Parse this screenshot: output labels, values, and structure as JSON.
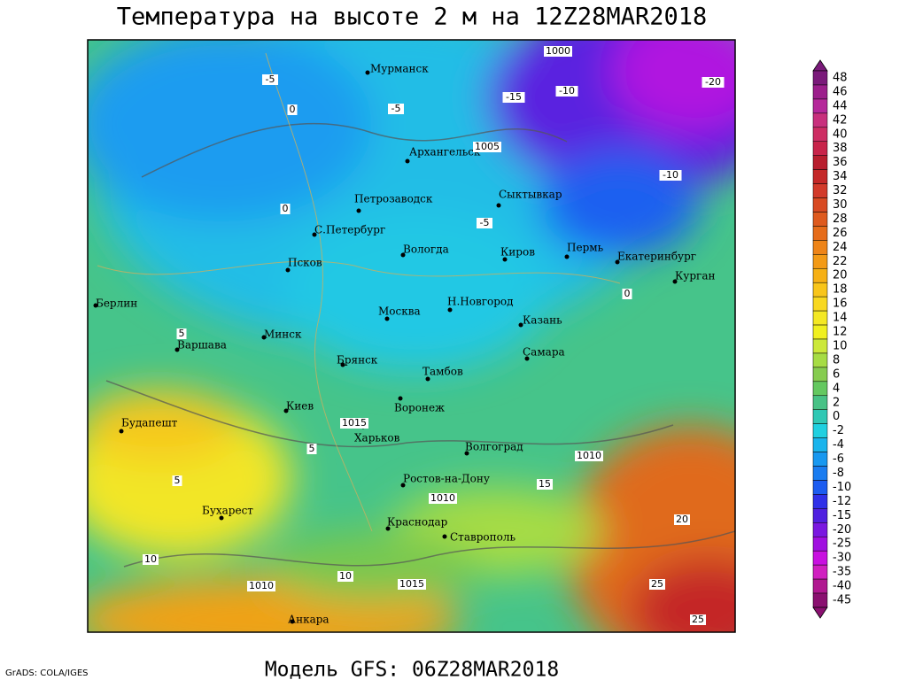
{
  "title": "Температура на высоте 2 м на 12Z28MAR2018",
  "subtitle": "Модель GFS: 06Z28MAR2018",
  "credit": "GrADS: COLA/IGES",
  "cities": [
    "Мурманск",
    "Архангельск",
    "Петрозаводск",
    "С.Петербург",
    "Сыктывкар",
    "Вологда",
    "Киров",
    "Пермь",
    "Екатеринбург",
    "Курган",
    "Псков",
    "Берлин",
    "Москва",
    "Н.Новгород",
    "Казань",
    "Минск",
    "Варшава",
    "Самара",
    "Брянск",
    "Тамбов",
    "Воронеж",
    "Киев",
    "Будапешт",
    "Харьков",
    "Волгоград",
    "Ростов-на-Дону",
    "Бухарест",
    "Краснодар",
    "Ставрополь",
    "Анкара"
  ],
  "contour_labels": [
    "1000",
    "1005",
    "1010",
    "1015",
    "1015",
    "1010",
    "1010",
    "-5",
    "-5",
    "-10",
    "-15",
    "-20",
    "-10",
    "-5",
    "0",
    "0",
    "0",
    "5",
    "5",
    "5",
    "10",
    "10",
    "15",
    "20",
    "25",
    "25"
  ],
  "colorbar": {
    "levels": [
      "48",
      "46",
      "44",
      "42",
      "40",
      "38",
      "36",
      "34",
      "32",
      "30",
      "28",
      "26",
      "24",
      "22",
      "20",
      "18",
      "16",
      "14",
      "12",
      "10",
      "8",
      "6",
      "4",
      "2",
      "0",
      "-2",
      "-4",
      "-6",
      "-8",
      "-10",
      "-12",
      "-15",
      "-20",
      "-25",
      "-30",
      "-35",
      "-40",
      "-45"
    ],
    "colors": [
      "#7a1a7a",
      "#9c1f8c",
      "#b5289a",
      "#c8307d",
      "#cd2d63",
      "#c8244a",
      "#b81e2e",
      "#c42828",
      "#d23a2a",
      "#d84a22",
      "#de5a1e",
      "#e66c1a",
      "#ee8418",
      "#f39a16",
      "#f6b015",
      "#f8c51a",
      "#f8d820",
      "#f4e824",
      "#f0f020",
      "#cce83a",
      "#a6dc44",
      "#86cc50",
      "#64c860",
      "#48c286",
      "#30c8b4",
      "#20d0e0",
      "#1ab4ec",
      "#1898f0",
      "#1a7cf0",
      "#1c5cf0",
      "#3030e8",
      "#5020e0",
      "#7a18e0",
      "#a010e0",
      "#c810e0",
      "#d020c0",
      "#b01890",
      "#8a1070"
    ]
  }
}
